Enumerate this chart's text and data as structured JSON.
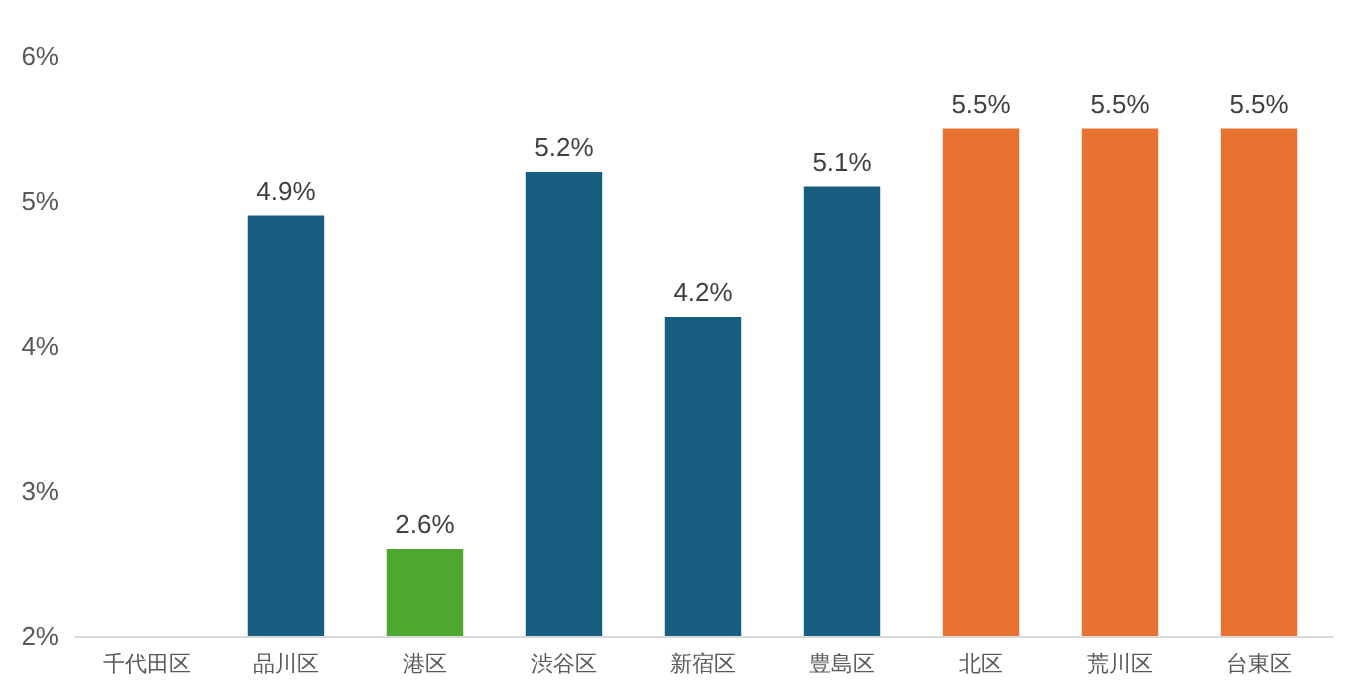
{
  "chart_data": {
    "type": "bar",
    "categories": [
      "千代田区",
      "品川区",
      "港区",
      "渋谷区",
      "新宿区",
      "豊島区",
      "北区",
      "荒川区",
      "台東区"
    ],
    "values": [
      null,
      4.9,
      2.6,
      5.2,
      4.2,
      5.1,
      5.5,
      5.5,
      5.5
    ],
    "colors": [
      null,
      "#175e80",
      "#4ea72e",
      "#175e80",
      "#175e80",
      "#175e80",
      "#e97132",
      "#e97132",
      "#e97132"
    ],
    "value_labels": [
      null,
      "4.9%",
      "2.6%",
      "5.2%",
      "4.2%",
      "5.1%",
      "5.5%",
      "5.5%",
      "5.5%"
    ],
    "ylim": [
      2,
      6
    ],
    "yticks": [
      {
        "value": 2,
        "label": "2%"
      },
      {
        "value": 3,
        "label": "3%"
      },
      {
        "value": 4,
        "label": "4%"
      },
      {
        "value": 5,
        "label": "5%"
      },
      {
        "value": 6,
        "label": "6%"
      }
    ],
    "relative": false
  }
}
